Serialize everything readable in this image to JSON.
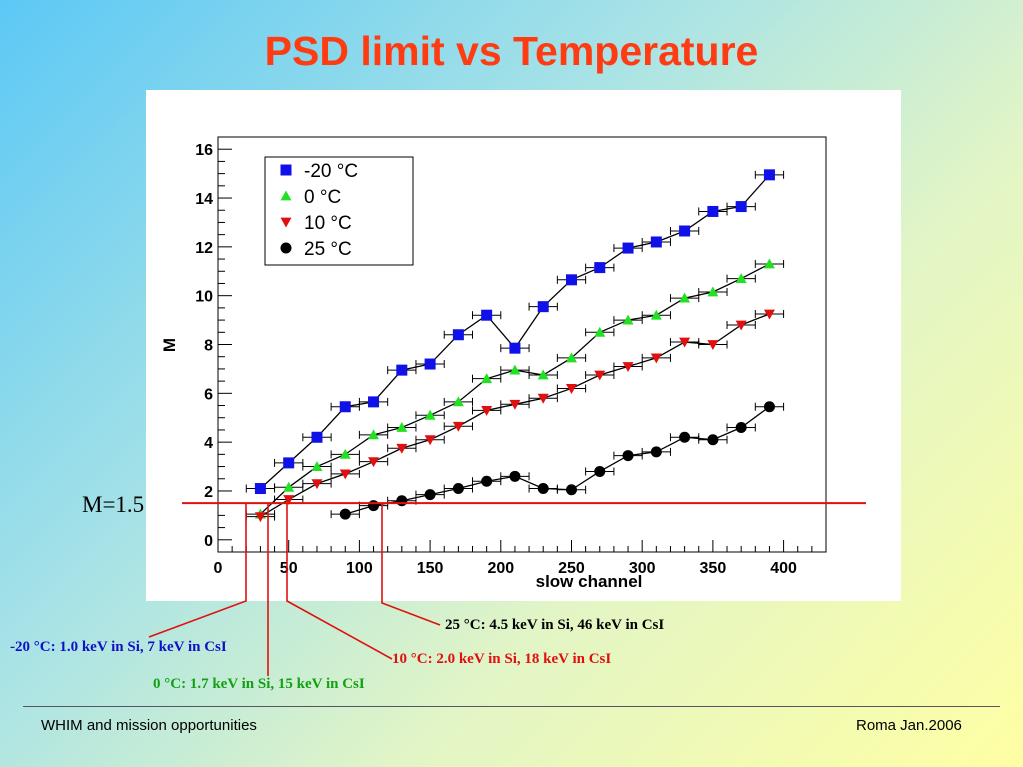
{
  "title": "PSD limit vs Temperature",
  "chart_data": {
    "type": "scatter",
    "xlabel": "slow channel",
    "ylabel": "M",
    "xlim": [
      0,
      430
    ],
    "ylim": [
      -0.5,
      16.5
    ],
    "xticks": [
      0,
      50,
      100,
      150,
      200,
      250,
      300,
      350,
      400
    ],
    "yticks": [
      0,
      2,
      4,
      6,
      8,
      10,
      12,
      14,
      16
    ],
    "grid": false,
    "legend_position": "top-left",
    "series": [
      {
        "name": "-20 °C",
        "marker": "square",
        "color": "#1010e8",
        "x": [
          30,
          50,
          70,
          90,
          110,
          130,
          150,
          170,
          190,
          210,
          230,
          250,
          270,
          290,
          310,
          330,
          350,
          370,
          390
        ],
        "y": [
          2.1,
          3.15,
          4.2,
          5.45,
          5.65,
          6.95,
          7.2,
          8.4,
          9.2,
          7.85,
          9.55,
          10.65,
          11.15,
          11.95,
          12.2,
          12.65,
          13.45,
          13.65,
          14.95
        ]
      },
      {
        "name": "0 °C",
        "marker": "triangle-up",
        "color": "#22e022",
        "x": [
          30,
          50,
          70,
          90,
          110,
          130,
          150,
          170,
          190,
          210,
          230,
          250,
          270,
          290,
          310,
          330,
          350,
          370,
          390
        ],
        "y": [
          1.05,
          2.15,
          3.0,
          3.5,
          4.3,
          4.6,
          5.1,
          5.65,
          6.6,
          6.95,
          6.75,
          7.45,
          8.5,
          9.0,
          9.2,
          9.9,
          10.15,
          10.7,
          11.3
        ]
      },
      {
        "name": "10 °C",
        "marker": "triangle-down",
        "color": "#e01010",
        "x": [
          30,
          50,
          70,
          90,
          110,
          130,
          150,
          170,
          190,
          210,
          230,
          250,
          270,
          290,
          310,
          330,
          350,
          370,
          390
        ],
        "y": [
          0.95,
          1.65,
          2.3,
          2.7,
          3.2,
          3.75,
          4.1,
          4.65,
          5.3,
          5.55,
          5.8,
          6.2,
          6.75,
          7.1,
          7.45,
          8.1,
          8.0,
          8.8,
          9.25
        ]
      },
      {
        "name": "25 °C",
        "marker": "circle",
        "color": "#000000",
        "x": [
          90,
          110,
          130,
          150,
          170,
          190,
          210,
          230,
          250,
          270,
          290,
          310,
          330,
          350,
          370,
          390
        ],
        "y": [
          1.05,
          1.4,
          1.6,
          1.85,
          2.1,
          2.4,
          2.6,
          2.1,
          2.05,
          2.8,
          3.45,
          3.6,
          4.2,
          4.1,
          4.6,
          5.45
        ]
      }
    ],
    "threshold": {
      "y": 1.5
    }
  },
  "annotations": {
    "m_label": "M=1.5",
    "minus20": "-20 °C: 1.0 keV in Si, 7 keV in CsI",
    "zero": "0 °C: 1.7 keV in Si, 15 keV in CsI",
    "ten": "10 °C: 2.0 keV in Si, 18 keV in CsI",
    "twentyfive": "25 °C: 4.5 keV in Si, 46 keV in CsI"
  },
  "colors": {
    "title": "#ff3b12",
    "threshold": "#e01010",
    "blue_text": "#1010c8",
    "green_text": "#14a014",
    "red_text": "#e01010",
    "black_text": "#000000"
  },
  "footer": {
    "left": "WHIM and mission opportunities",
    "right": "Roma  Jan.2006"
  }
}
